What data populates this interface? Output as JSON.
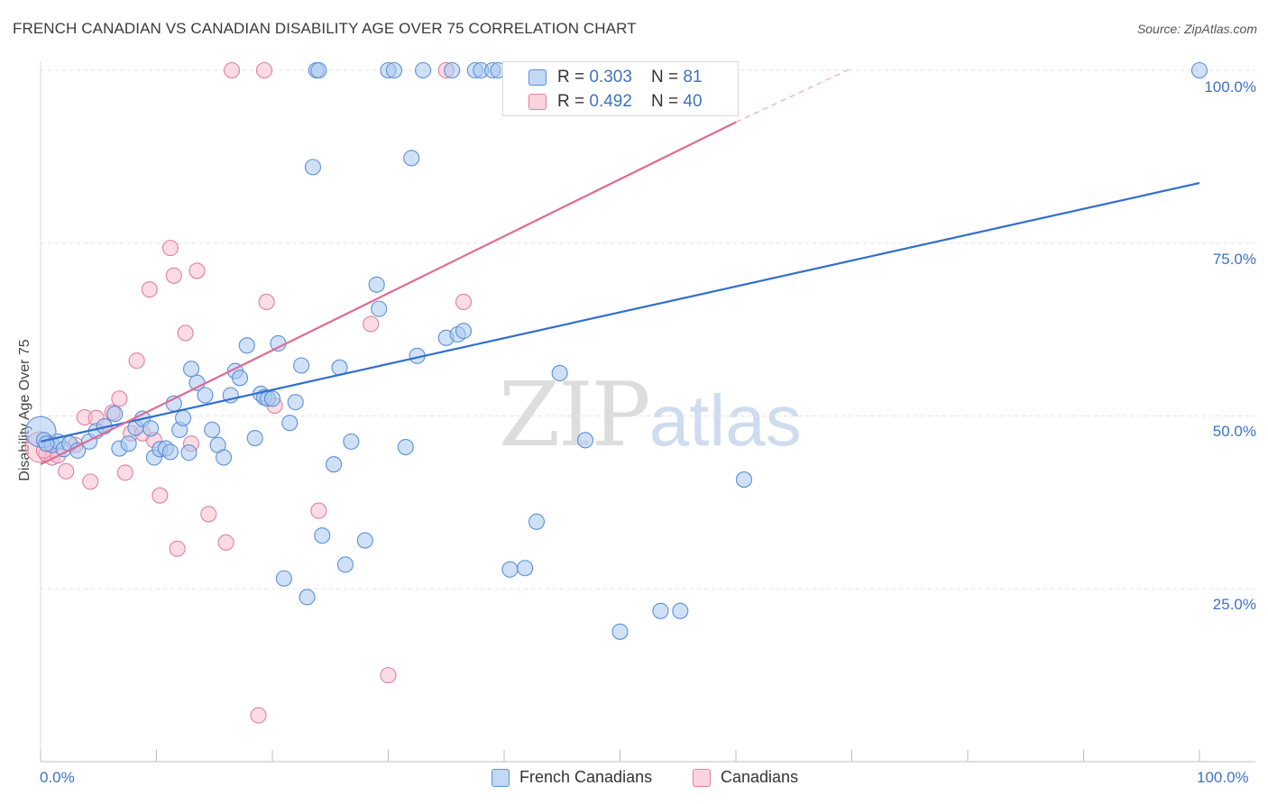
{
  "header": {
    "title": "FRENCH CANADIAN VS CANADIAN DISABILITY AGE OVER 75 CORRELATION CHART",
    "source": "Source: ZipAtlas.com"
  },
  "watermark": {
    "zip": "ZIP",
    "atlas": "atlas"
  },
  "legend": {
    "rows": [
      {
        "r_label": "R = ",
        "r_value": "0.303",
        "n_label": "N = ",
        "n_value": "81"
      },
      {
        "r_label": "R = ",
        "r_value": "0.492",
        "n_label": "N = ",
        "n_value": "40"
      }
    ]
  },
  "bottom_legend": {
    "blue_label": "French Canadians",
    "pink_label": "Canadians"
  },
  "colors": {
    "blue_fill": "#a9c8f0",
    "blue_stroke": "#5b8fd8",
    "blue_line": "#2f6fd0",
    "pink_fill": "#f7bfd0",
    "pink_stroke": "#e07fa0",
    "pink_line": "#e06b93",
    "tick_text": "#3d72c4",
    "grid": "#e2e2e2"
  },
  "chart_data": {
    "type": "scatter",
    "title": "FRENCH CANADIAN VS CANADIAN DISABILITY AGE OVER 75 CORRELATION CHART",
    "xlabel": "",
    "ylabel": "Disability Age Over 75",
    "xlim": [
      0,
      100
    ],
    "ylim": [
      0,
      100
    ],
    "x_tick_labels": [
      "0.0%",
      "100.0%"
    ],
    "y_tick_labels": [
      "25.0%",
      "50.0%",
      "75.0%",
      "100.0%"
    ],
    "y_ticks": [
      25,
      50,
      75,
      100
    ],
    "grid": true,
    "legend_position": "top-center",
    "series": [
      {
        "name": "French Canadians",
        "r": 0.303,
        "n": 81,
        "trend": {
          "x0": 0,
          "y0": 46.3,
          "x1": 100,
          "y1": 83.7
        },
        "points": [
          [
            0.0,
            47.7
          ],
          [
            0.3,
            46.5
          ],
          [
            1.0,
            45.8
          ],
          [
            1.5,
            46.3
          ],
          [
            2.0,
            45.2
          ],
          [
            2.5,
            46.0
          ],
          [
            3.2,
            45.0
          ],
          [
            4.2,
            46.3
          ],
          [
            4.8,
            47.8
          ],
          [
            5.5,
            48.5
          ],
          [
            6.4,
            50.3
          ],
          [
            6.8,
            45.3
          ],
          [
            7.6,
            46.0
          ],
          [
            8.2,
            48.3
          ],
          [
            8.8,
            49.6
          ],
          [
            9.5,
            48.2
          ],
          [
            9.8,
            44.0
          ],
          [
            10.3,
            45.2
          ],
          [
            10.8,
            45.3
          ],
          [
            11.2,
            44.8
          ],
          [
            11.5,
            51.8
          ],
          [
            12.0,
            48.0
          ],
          [
            12.3,
            49.7
          ],
          [
            12.8,
            44.7
          ],
          [
            13.0,
            56.8
          ],
          [
            13.5,
            54.8
          ],
          [
            14.2,
            53.0
          ],
          [
            14.8,
            48.0
          ],
          [
            15.3,
            45.8
          ],
          [
            15.8,
            44.0
          ],
          [
            16.4,
            53.0
          ],
          [
            16.8,
            56.5
          ],
          [
            17.2,
            55.5
          ],
          [
            17.8,
            60.2
          ],
          [
            18.5,
            46.8
          ],
          [
            19.0,
            53.2
          ],
          [
            19.3,
            52.7
          ],
          [
            19.6,
            52.5
          ],
          [
            20.0,
            52.5
          ],
          [
            20.5,
            60.5
          ],
          [
            21.0,
            26.5
          ],
          [
            21.5,
            49.0
          ],
          [
            22.0,
            52.0
          ],
          [
            22.5,
            57.3
          ],
          [
            23.0,
            23.8
          ],
          [
            23.5,
            86.0
          ],
          [
            23.8,
            100.0
          ],
          [
            24.0,
            100.0
          ],
          [
            24.3,
            32.7
          ],
          [
            25.3,
            43.0
          ],
          [
            25.8,
            57.0
          ],
          [
            26.3,
            28.5
          ],
          [
            26.8,
            46.3
          ],
          [
            28.0,
            32.0
          ],
          [
            29.0,
            69.0
          ],
          [
            29.2,
            65.5
          ],
          [
            30.0,
            100.0
          ],
          [
            30.5,
            100.0
          ],
          [
            31.5,
            45.5
          ],
          [
            32.0,
            87.3
          ],
          [
            32.5,
            58.7
          ],
          [
            33.0,
            100.0
          ],
          [
            35.0,
            61.3
          ],
          [
            35.5,
            100.0
          ],
          [
            36.0,
            61.8
          ],
          [
            36.5,
            62.3
          ],
          [
            37.5,
            100.0
          ],
          [
            38.0,
            100.0
          ],
          [
            39.0,
            100.0
          ],
          [
            39.5,
            100.0
          ],
          [
            40.5,
            27.8
          ],
          [
            41.8,
            28.0
          ],
          [
            42.8,
            34.7
          ],
          [
            44.8,
            56.2
          ],
          [
            47.0,
            46.5
          ],
          [
            50.0,
            18.8
          ],
          [
            53.5,
            21.8
          ],
          [
            55.2,
            21.8
          ],
          [
            60.7,
            40.8
          ],
          [
            100.0,
            100.0
          ],
          [
            0.5,
            46.0
          ]
        ]
      },
      {
        "name": "Canadians",
        "r": 0.492,
        "n": 40,
        "trend": {
          "x0": 0,
          "y0": 43.0,
          "x1": 60,
          "y1": 92.5,
          "dashed_to_x": 70,
          "dashed_to_y": 100.3
        },
        "points": [
          [
            0.0,
            45.5
          ],
          [
            0.5,
            44.5
          ],
          [
            1.0,
            44.0
          ],
          [
            1.5,
            44.3
          ],
          [
            2.2,
            42.0
          ],
          [
            3.0,
            45.8
          ],
          [
            3.8,
            49.8
          ],
          [
            4.3,
            40.5
          ],
          [
            4.8,
            49.7
          ],
          [
            5.5,
            48.5
          ],
          [
            6.2,
            50.5
          ],
          [
            6.8,
            52.5
          ],
          [
            7.3,
            41.8
          ],
          [
            7.8,
            47.5
          ],
          [
            8.3,
            58.0
          ],
          [
            8.8,
            47.5
          ],
          [
            9.4,
            68.3
          ],
          [
            9.8,
            46.5
          ],
          [
            10.3,
            38.5
          ],
          [
            11.2,
            74.3
          ],
          [
            11.5,
            70.3
          ],
          [
            11.8,
            30.8
          ],
          [
            12.5,
            62.0
          ],
          [
            13.0,
            46.0
          ],
          [
            13.5,
            71.0
          ],
          [
            14.5,
            35.8
          ],
          [
            16.0,
            31.7
          ],
          [
            16.5,
            100.0
          ],
          [
            18.8,
            6.7
          ],
          [
            19.3,
            100.0
          ],
          [
            19.5,
            66.5
          ],
          [
            20.2,
            51.5
          ],
          [
            24.0,
            36.3
          ],
          [
            28.5,
            63.3
          ],
          [
            30.0,
            12.5
          ],
          [
            35.0,
            100.0
          ],
          [
            36.5,
            66.5
          ],
          [
            52.0,
            100.0
          ],
          [
            56.0,
            100.0
          ],
          [
            0.3,
            45.0
          ]
        ]
      }
    ]
  }
}
